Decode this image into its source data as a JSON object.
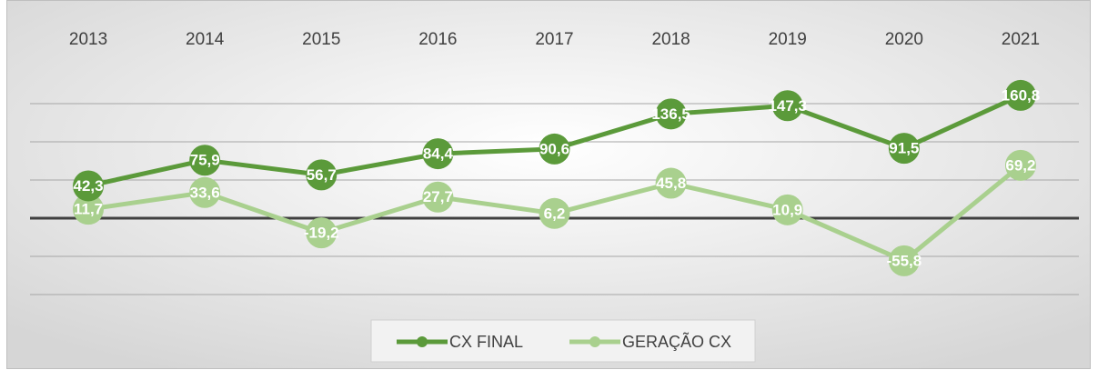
{
  "chart_data": {
    "type": "line",
    "categories": [
      "2013",
      "2014",
      "2015",
      "2016",
      "2017",
      "2018",
      "2019",
      "2020",
      "2021"
    ],
    "series": [
      {
        "name": "CX FINAL",
        "color": "#5b9a3a",
        "values": [
          42.3,
          75.9,
          56.7,
          84.4,
          90.6,
          136.5,
          147.3,
          91.5,
          160.8
        ],
        "value_labels": [
          "42,3",
          "75,9",
          "56,7",
          "84,4",
          "90,6",
          "136,5",
          "147,3",
          "91,5",
          "160,8"
        ]
      },
      {
        "name": "GERAÇÃO CX",
        "color": "#a9d08e",
        "values": [
          11.7,
          33.6,
          -19.2,
          27.7,
          6.2,
          45.8,
          10.9,
          -55.8,
          69.2
        ],
        "value_labels": [
          "11,7",
          "33,6",
          "-19,2",
          "27,7",
          "6,2",
          "45,8",
          "10,9",
          "-55,8",
          "69,2"
        ]
      }
    ],
    "ylim": [
      -100,
      200
    ],
    "yticks": [
      -100,
      -50,
      0,
      50,
      100,
      150
    ],
    "grid": true,
    "legend": "bottom"
  }
}
